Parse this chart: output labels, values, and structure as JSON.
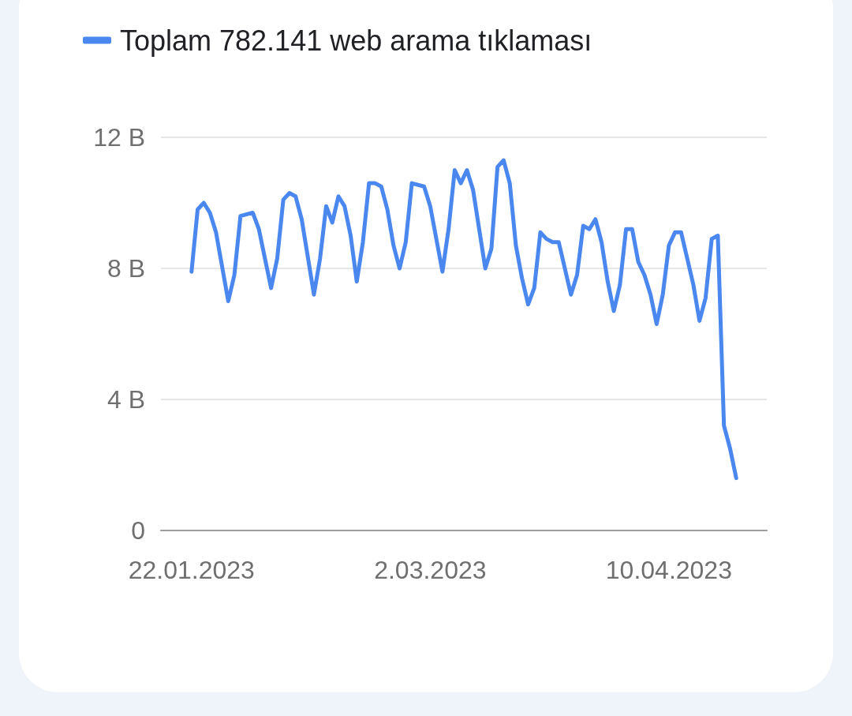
{
  "chart_data": {
    "type": "line",
    "x": [
      "2023-01-22",
      "2023-01-23",
      "2023-01-24",
      "2023-01-25",
      "2023-01-26",
      "2023-01-28",
      "2023-01-29",
      "2023-01-30",
      "2023-02-01",
      "2023-02-02",
      "2023-02-04",
      "2023-02-05",
      "2023-02-06",
      "2023-02-07",
      "2023-02-08",
      "2023-02-09",
      "2023-02-11",
      "2023-02-12",
      "2023-02-13",
      "2023-02-14",
      "2023-02-15",
      "2023-02-16",
      "2023-02-17",
      "2023-02-18",
      "2023-02-19",
      "2023-02-20",
      "2023-02-21",
      "2023-02-22",
      "2023-02-23",
      "2023-02-24",
      "2023-02-25",
      "2023-02-26",
      "2023-02-27",
      "2023-03-01",
      "2023-03-02",
      "2023-03-04",
      "2023-03-05",
      "2023-03-06",
      "2023-03-07",
      "2023-03-08",
      "2023-03-09",
      "2023-03-11",
      "2023-03-12",
      "2023-03-13",
      "2023-03-14",
      "2023-03-15",
      "2023-03-16",
      "2023-03-17",
      "2023-03-18",
      "2023-03-19",
      "2023-03-20",
      "2023-03-21",
      "2023-03-22",
      "2023-03-23",
      "2023-03-25",
      "2023-03-26",
      "2023-03-27",
      "2023-03-28",
      "2023-03-29",
      "2023-03-30",
      "2023-03-31",
      "2023-04-01",
      "2023-04-02",
      "2023-04-03",
      "2023-04-04",
      "2023-04-05",
      "2023-04-06",
      "2023-04-07",
      "2023-04-08",
      "2023-04-09",
      "2023-04-10",
      "2023-04-11",
      "2023-04-12",
      "2023-04-13",
      "2023-04-14",
      "2023-04-15",
      "2023-04-16",
      "2023-04-17",
      "2023-04-18",
      "2023-04-19",
      "2023-04-20",
      "2023-04-21"
    ],
    "series": [
      {
        "name": "Toplam 782.141 web arama tıklaması",
        "color": "#4a87ee",
        "values": [
          7.9,
          9.8,
          10.0,
          9.7,
          9.1,
          7.0,
          7.8,
          9.6,
          9.7,
          9.2,
          7.4,
          8.3,
          10.1,
          10.3,
          10.2,
          9.5,
          7.2,
          8.3,
          9.9,
          9.4,
          10.2,
          9.9,
          9.0,
          7.6,
          8.8,
          10.6,
          10.6,
          10.5,
          9.8,
          8.7,
          8.0,
          8.8,
          10.6,
          10.5,
          9.9,
          7.9,
          9.2,
          11.0,
          10.6,
          11.0,
          10.4,
          8.0,
          8.6,
          11.1,
          11.3,
          10.6,
          8.7,
          7.7,
          6.9,
          7.4,
          9.1,
          8.9,
          8.8,
          8.8,
          7.2,
          7.8,
          9.3,
          9.2,
          9.5,
          8.8,
          7.6,
          6.7,
          7.5,
          9.2,
          9.2,
          8.2,
          7.8,
          7.2,
          6.3,
          7.2,
          8.7,
          9.1,
          9.1,
          8.3,
          7.5,
          6.4,
          7.1,
          8.9,
          9.0,
          3.2,
          2.5,
          1.6
        ]
      }
    ],
    "xlim": [
      "2023-01-17",
      "2023-04-26"
    ],
    "xticks": [
      {
        "value": "2023-01-22",
        "label": "22.01.2023"
      },
      {
        "value": "2023-03-02",
        "label": "2.03.2023"
      },
      {
        "value": "2023-04-10",
        "label": "10.04.2023"
      }
    ],
    "ylim": [
      0,
      12
    ],
    "yticks": [
      {
        "value": 0,
        "label": "0"
      },
      {
        "value": 4,
        "label": "4 B"
      },
      {
        "value": 8,
        "label": "8 B"
      },
      {
        "value": 12,
        "label": "12 B"
      }
    ],
    "grid": "y",
    "legend": "top left",
    "marker": "none",
    "line_style": "solid"
  }
}
